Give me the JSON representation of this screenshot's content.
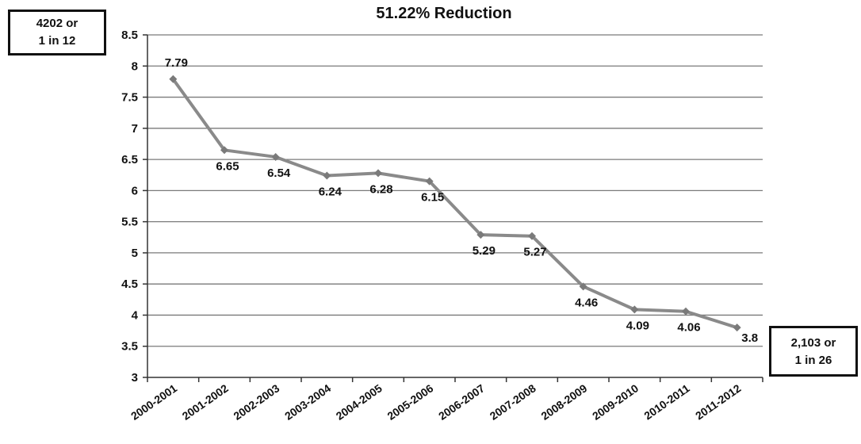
{
  "chart_data": {
    "type": "line",
    "title": "51.22% Reduction",
    "categories": [
      "2000-2001",
      "2001-2002",
      "2002-2003",
      "2003-2004",
      "2004-2005",
      "2005-2006",
      "2006-2007",
      "2007-2008",
      "2008-2009",
      "2009-2010",
      "2010-2011",
      "2011-2012"
    ],
    "values": [
      7.79,
      6.65,
      6.54,
      6.24,
      6.28,
      6.15,
      5.29,
      5.27,
      4.46,
      4.09,
      4.06,
      3.8
    ],
    "data_labels": [
      "7.79",
      "6.65",
      "6.54",
      "6.24",
      "6.28",
      "6.15",
      "5.29",
      "5.27",
      "4.46",
      "4.09",
      "4.06",
      "3.8"
    ],
    "ylim": [
      3,
      8.5
    ],
    "yticks": [
      "3",
      "3.5",
      "4",
      "4.5",
      "5",
      "5.5",
      "6",
      "6.5",
      "7",
      "7.5",
      "8",
      "8.5"
    ],
    "grid": true,
    "legend": "none",
    "line_color": "#8a8a8a",
    "annotations": {
      "start": {
        "line1": "4202 or",
        "line2": "1 in 12"
      },
      "end": {
        "line1": "2,103 or",
        "line2": "1 in 26"
      }
    }
  }
}
